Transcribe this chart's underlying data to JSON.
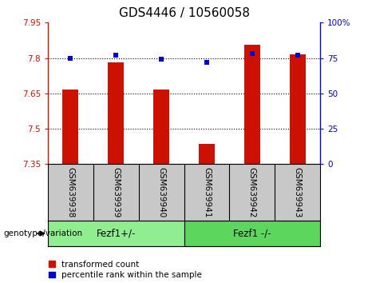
{
  "title": "GDS4446 / 10560058",
  "samples": [
    "GSM639938",
    "GSM639939",
    "GSM639940",
    "GSM639941",
    "GSM639942",
    "GSM639943"
  ],
  "bar_values": [
    7.665,
    7.78,
    7.665,
    7.435,
    7.855,
    7.815
  ],
  "marker_values": [
    75,
    77,
    74,
    72,
    78,
    77
  ],
  "ylim_left": [
    7.35,
    7.95
  ],
  "ylim_right": [
    0,
    100
  ],
  "yticks_left": [
    7.35,
    7.5,
    7.65,
    7.8,
    7.95
  ],
  "yticks_right": [
    0,
    25,
    50,
    75,
    100
  ],
  "ytick_labels_left": [
    "7.35",
    "7.5",
    "7.65",
    "7.8",
    "7.95"
  ],
  "ytick_labels_right": [
    "0",
    "25",
    "50",
    "75",
    "100%"
  ],
  "bar_color": "#cc1100",
  "marker_color": "#0000cc",
  "bar_bottom": 7.35,
  "group1_label": "Fezf1+/-",
  "group2_label": "Fezf1 -/-",
  "group1_color": "#90ee90",
  "group2_color": "#5cd65c",
  "legend_label1": "transformed count",
  "legend_label2": "percentile rank within the sample",
  "genotype_label": "genotype/variation",
  "xlabel_bg": "#c8c8c8",
  "title_fontsize": 11,
  "bar_width": 0.35
}
